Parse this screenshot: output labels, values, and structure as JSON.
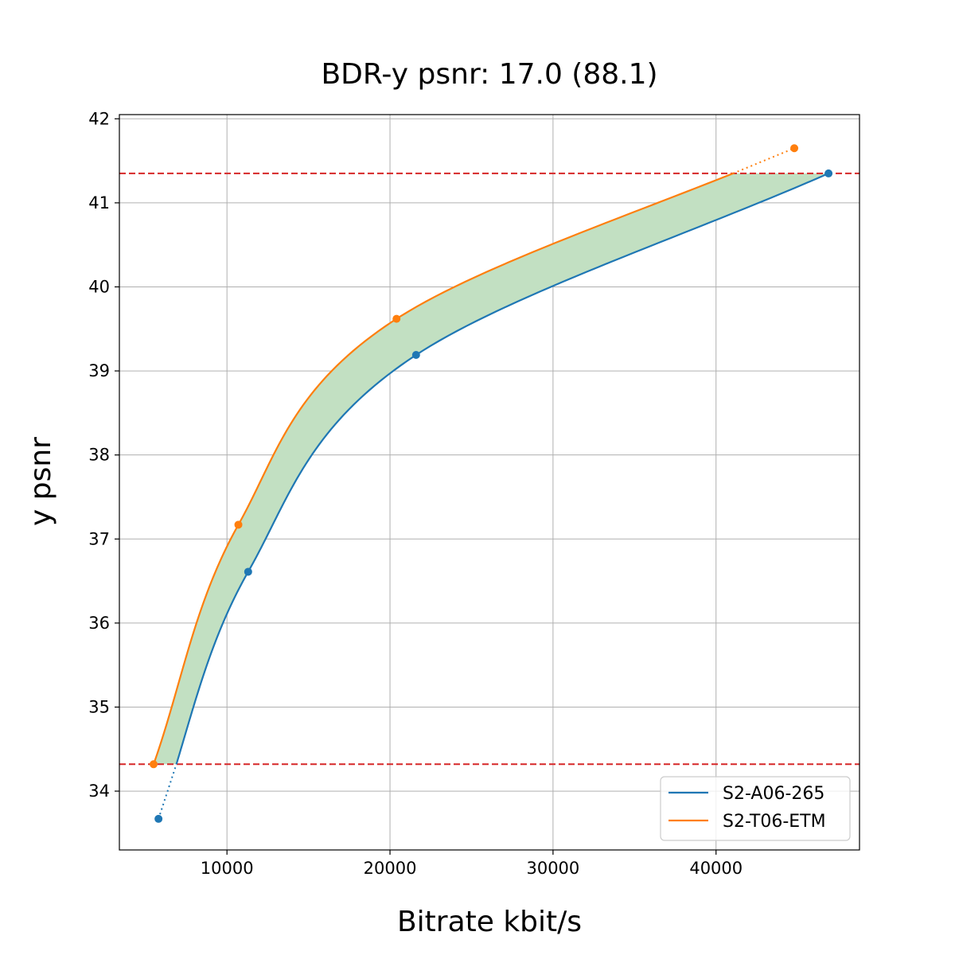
{
  "chart_data": {
    "type": "line",
    "title": "BDR-y psnr: 17.0 (88.1)",
    "xlabel": "Bitrate kbit/s",
    "ylabel": "y psnr",
    "xlim": [
      3400,
      48800
    ],
    "ylim": [
      33.3,
      42.05
    ],
    "x_ticks": [
      10000,
      20000,
      30000,
      40000
    ],
    "x_tick_labels": [
      "10000",
      "20000",
      "30000",
      "40000"
    ],
    "y_ticks": [
      34,
      35,
      36,
      37,
      38,
      39,
      40,
      41,
      42
    ],
    "y_tick_labels": [
      "34",
      "35",
      "36",
      "37",
      "38",
      "39",
      "40",
      "41",
      "42"
    ],
    "grid": true,
    "legend_position": "lower-right",
    "reference_lines": [
      {
        "y": 34.32,
        "color": "#d62728",
        "style": "dashed"
      },
      {
        "y": 41.35,
        "color": "#d62728",
        "style": "dashed"
      }
    ],
    "fill_color": "#c2e0c2",
    "series": [
      {
        "name": "S2-A06-265",
        "color": "#1f77b4",
        "points": [
          {
            "x": 5800,
            "y": 33.67
          },
          {
            "x": 11300,
            "y": 36.61
          },
          {
            "x": 21600,
            "y": 39.19
          },
          {
            "x": 46900,
            "y": 41.35
          }
        ]
      },
      {
        "name": "S2-T06-ETM",
        "color": "#ff7f0e",
        "points": [
          {
            "x": 5500,
            "y": 34.32
          },
          {
            "x": 10700,
            "y": 37.17
          },
          {
            "x": 20400,
            "y": 39.62
          },
          {
            "x": 44800,
            "y": 41.65
          }
        ]
      }
    ]
  }
}
